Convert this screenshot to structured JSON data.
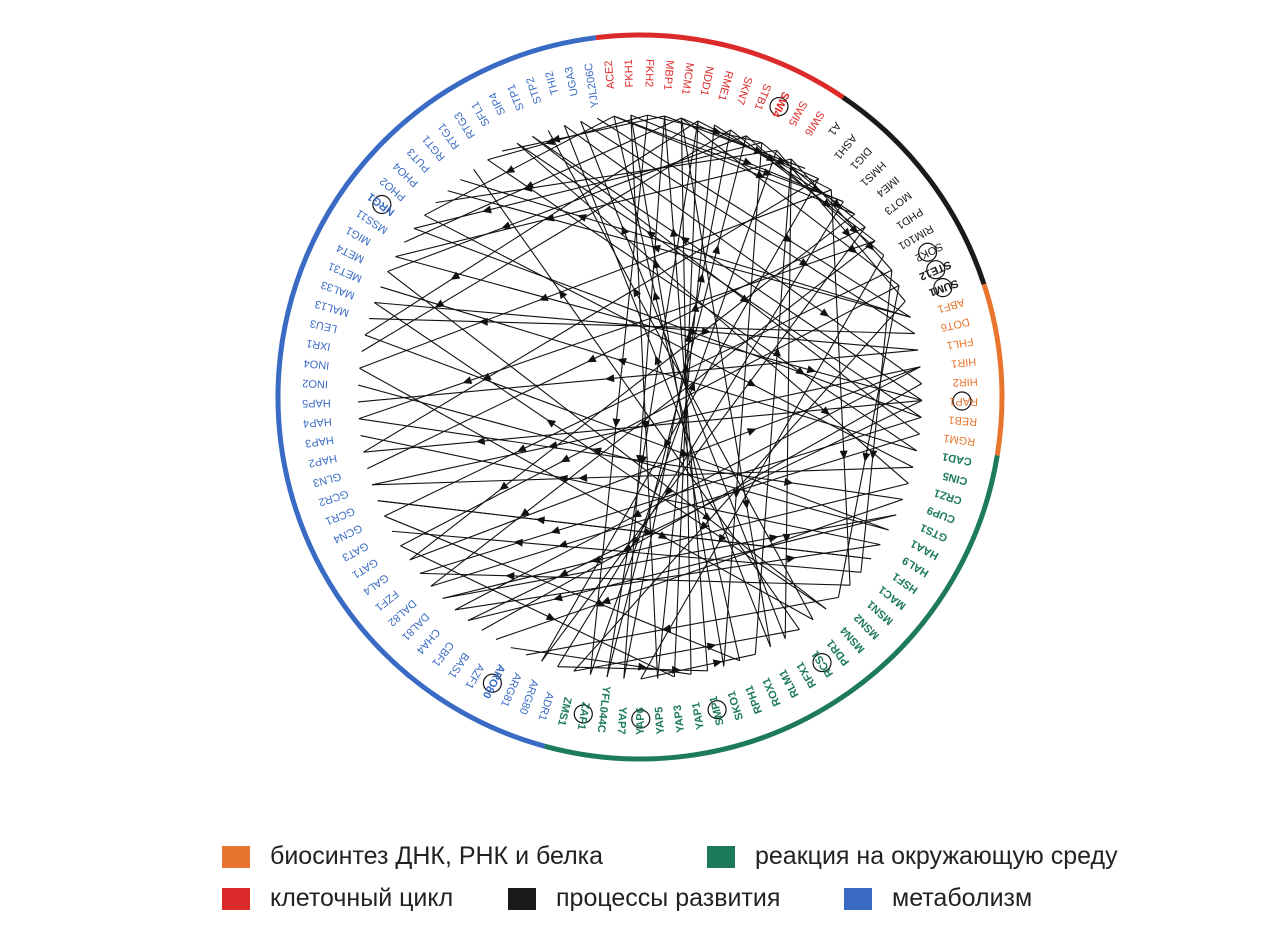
{
  "colors": {
    "dna_rna_protein": "#e8742d",
    "environment": "#1d7a5c",
    "cell_cycle": "#dc2a2a",
    "development": "#1a1a1a",
    "metabolism": "#3a6bc4",
    "edge": "#111111"
  },
  "groups": [
    {
      "id": "cell_cycle",
      "color_key": "cell_cycle",
      "genes": [
        "ACE2",
        "FKH1",
        "FKH2",
        "MBP1",
        "MCM1",
        "NDD1",
        "RME1",
        "SKN7",
        "STB1",
        "SWI4",
        "SWI5",
        "SWI6"
      ]
    },
    {
      "id": "development",
      "color_key": "development",
      "genes": [
        "A1",
        "ASH1",
        "DIG1",
        "HMS1",
        "IME4",
        "MOT3",
        "PHD1",
        "RIM101",
        "SOK2",
        "STE12",
        "SUM1"
      ]
    },
    {
      "id": "dna_rna_protein",
      "color_key": "dna_rna_protein",
      "genes": [
        "ABF1",
        "DOT6",
        "FHL1",
        "HIR1",
        "HIR2",
        "RAP1",
        "REB1",
        "RGM1"
      ]
    },
    {
      "id": "environment",
      "color_key": "environment",
      "genes": [
        "CAD1",
        "CIN5",
        "CRZ1",
        "CUP9",
        "GTS1",
        "HAA1",
        "HAL9",
        "HSF1",
        "MAC1",
        "MSN1",
        "MSN2",
        "MSN4",
        "PDR1",
        "RCS1",
        "RFX1",
        "RLM1",
        "ROX1",
        "RPH1",
        "SKO1",
        "SMP1",
        "YAP1",
        "YAP3",
        "YAP5",
        "YAP6",
        "YAP7",
        "YFL044C",
        "ZAP1",
        "ZMS1"
      ]
    },
    {
      "id": "metabolism",
      "color_key": "metabolism",
      "genes": [
        "ADR1",
        "ARG80",
        "ARG81",
        "ARO80",
        "AZF1",
        "BAS1",
        "CBF1",
        "CHA4",
        "DAL81",
        "DAL82",
        "FZF1",
        "GAL4",
        "GAT1",
        "GAT3",
        "GCN4",
        "GCR1",
        "GCR2",
        "GLN3",
        "HAP2",
        "HAP3",
        "HAP4",
        "HAP5",
        "INO2",
        "INO4",
        "IXR1",
        "LEU3",
        "MAL13",
        "MAL33",
        "MET31",
        "MET4",
        "MIG1",
        "MSS11",
        "NRG1",
        "PHO2",
        "PHO4",
        "PUT3",
        "RGT1",
        "RTG1",
        "RTG3",
        "SFL1",
        "SIP4",
        "STP1",
        "STP2",
        "THI2",
        "UGA3",
        "YJL206C"
      ]
    }
  ],
  "bold_genes": [
    "SWI4",
    "STE12",
    "SUM1",
    "NRG1",
    "ARO80",
    "ZAP1",
    "YAP6",
    "SMP1",
    "RCS1",
    "CAD1",
    "CIN5",
    "CRZ1",
    "CUP9",
    "GTS1",
    "HAA1",
    "HAL9",
    "HSF1",
    "MAC1",
    "MSN1",
    "MSN2",
    "MSN4",
    "PDR1",
    "RFX1",
    "RLM1",
    "ROX1",
    "RPH1",
    "SKO1",
    "YAP1",
    "YAP3",
    "YAP5",
    "YAP7",
    "YFL044C",
    "ZMS1"
  ],
  "self_loops": [
    "SWI4",
    "NRG1",
    "SOK2",
    "STE12",
    "SUM1",
    "RAP1",
    "ARO80",
    "ZAP1",
    "YAP6",
    "SMP1",
    "RCS1"
  ],
  "edges": [
    [
      "FKH1",
      "HMS1"
    ],
    [
      "FKH2",
      "SWI4"
    ],
    [
      "MBP1",
      "A1"
    ],
    [
      "MCM1",
      "ASH1"
    ],
    [
      "MCM1",
      "STE12"
    ],
    [
      "NDD1",
      "DIG1"
    ],
    [
      "ACE2",
      "IME4"
    ],
    [
      "SKN7",
      "PHD1"
    ],
    [
      "SWI4",
      "MOT3"
    ],
    [
      "SWI6",
      "SOK2"
    ],
    [
      "ACE2",
      "PHO2"
    ],
    [
      "FKH2",
      "RTG3"
    ],
    [
      "MBP1",
      "SFL1"
    ],
    [
      "SWI5",
      "PHO4"
    ],
    [
      "SWI4",
      "NRG1"
    ],
    [
      "MCM1",
      "MSS11"
    ],
    [
      "SWI6",
      "MIG1"
    ],
    [
      "STB1",
      "MET4"
    ],
    [
      "NDD1",
      "LEU3"
    ],
    [
      "SKN7",
      "IXR1"
    ],
    [
      "ASH1",
      "ARG80"
    ],
    [
      "DIG1",
      "INO4"
    ],
    [
      "STE12",
      "GAT1"
    ],
    [
      "SOK2",
      "GCN4"
    ],
    [
      "PHD1",
      "HAP4"
    ],
    [
      "MOT3",
      "GLN3"
    ],
    [
      "SUM1",
      "ZMS1"
    ],
    [
      "RIM101",
      "YAP6"
    ],
    [
      "HMS1",
      "ADR1"
    ],
    [
      "IME4",
      "GAL4"
    ],
    [
      "ABF1",
      "PUT3"
    ],
    [
      "RAP1",
      "STP1"
    ],
    [
      "REB1",
      "SIP4"
    ],
    [
      "ABF1",
      "RGT1"
    ],
    [
      "DOT6",
      "MAL13"
    ],
    [
      "FHL1",
      "HAP5"
    ],
    [
      "HIR1",
      "CHA4"
    ],
    [
      "HIR2",
      "BAS1"
    ],
    [
      "RGM1",
      "DAL82"
    ],
    [
      "RAP1",
      "HAP2"
    ],
    [
      "CAD1",
      "MET31"
    ],
    [
      "CIN5",
      "GCR2"
    ],
    [
      "CRZ1",
      "DAL81"
    ],
    [
      "CUP9",
      "AZF1"
    ],
    [
      "GTS1",
      "CBF1"
    ],
    [
      "HAA1",
      "INO2"
    ],
    [
      "HAL9",
      "HAP3"
    ],
    [
      "HSF1",
      "GCR1"
    ],
    [
      "MAC1",
      "GAT3"
    ],
    [
      "MSN1",
      "FZF1"
    ],
    [
      "MSN2",
      "ARG81"
    ],
    [
      "MSN4",
      "MAL33"
    ],
    [
      "PDR1",
      "STP2"
    ],
    [
      "RCS1",
      "RTG1"
    ],
    [
      "RFX1",
      "UGA3"
    ],
    [
      "RLM1",
      "THI2"
    ],
    [
      "ROX1",
      "SWI6"
    ],
    [
      "RPH1",
      "ACE2"
    ],
    [
      "SKO1",
      "FKH1"
    ],
    [
      "SMP1",
      "MBP1"
    ],
    [
      "YAP1",
      "MCM1"
    ],
    [
      "YAP3",
      "NDD1"
    ],
    [
      "YAP5",
      "RME1"
    ],
    [
      "YAP7",
      "SKN7"
    ],
    [
      "YFL044C",
      "STB1"
    ],
    [
      "ZAP1",
      "SWI5"
    ],
    [
      "ZMS1",
      "RCS1"
    ],
    [
      "YAP6",
      "ROX1"
    ],
    [
      "ARO80",
      "YAP1"
    ],
    [
      "ADR1",
      "SMP1"
    ],
    [
      "GAT1",
      "YAP3"
    ],
    [
      "GCN4",
      "RPH1"
    ],
    [
      "INO4",
      "PDR1"
    ],
    [
      "MET4",
      "MSN4"
    ],
    [
      "HAP4",
      "CUP9"
    ],
    [
      "GCR1",
      "HSF1"
    ],
    [
      "LEU3",
      "HAA1"
    ],
    [
      "PHO2",
      "CIN5"
    ],
    [
      "RTG3",
      "CAD1"
    ],
    [
      "SIP4",
      "CRZ1"
    ],
    [
      "STP1",
      "RGM1"
    ],
    [
      "YJL206C",
      "ABF1"
    ],
    [
      "UGA3",
      "DOT6"
    ],
    [
      "THI2",
      "HIR2"
    ],
    [
      "MIG1",
      "RAP1"
    ],
    [
      "NRG1",
      "REB1"
    ],
    [
      "MAL33",
      "FHL1"
    ],
    [
      "GAL4",
      "HIR1"
    ],
    [
      "DAL81",
      "GTS1"
    ],
    [
      "CHA4",
      "HAL9"
    ],
    [
      "FKH1",
      "YAP5"
    ],
    [
      "MBP1",
      "YAP7"
    ],
    [
      "SWI4",
      "SKO1"
    ],
    [
      "MCM1",
      "RLM1"
    ],
    [
      "SWI6",
      "RFX1"
    ],
    [
      "STE12",
      "MSN2"
    ],
    [
      "SOK2",
      "MAC1"
    ],
    [
      "DIG1",
      "MSN1"
    ],
    [
      "ASH1",
      "HAP2"
    ],
    [
      "PHD1",
      "DAL82"
    ],
    [
      "FKH2",
      "ZAP1"
    ],
    [
      "NDD1",
      "YFL044C"
    ],
    [
      "ACE2",
      "HMS1"
    ],
    [
      "RME1",
      "IME4"
    ],
    [
      "STB1",
      "RIM101"
    ],
    [
      "SWI5",
      "SUM1"
    ],
    [
      "MOT3",
      "ARG80"
    ],
    [
      "HIR1",
      "GCR2"
    ],
    [
      "REB1",
      "FZF1"
    ],
    [
      "RAP1",
      "CBF1"
    ]
  ],
  "legend": [
    {
      "label": "биосинтез ДНК, РНК и белка",
      "color_key": "dna_rna_protein"
    },
    {
      "label": "реакция на окружающую среду",
      "color_key": "environment"
    },
    {
      "label": "клеточный цикл",
      "color_key": "cell_cycle"
    },
    {
      "label": "процессы развития",
      "color_key": "development"
    },
    {
      "label": "метаболизм",
      "color_key": "metabolism"
    }
  ]
}
